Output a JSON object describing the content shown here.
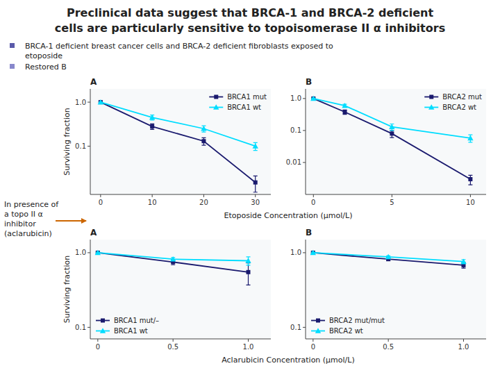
{
  "title": [
    "Preclinical data suggest that BRCA-1 and BRCA-2 deficient",
    "cells are particularly sensitive to topoisomerase II α inhibitors"
  ],
  "bullets": [
    [
      "BRCA-1 deficient breast cancer cells and BRCA-2 deficient fibroblasts exposed to",
      "etoposide"
    ],
    [
      "Restored B"
    ]
  ],
  "annotations": [
    "In presence of\na topo II α\ninhibitor\n(aclarubicin)"
  ],
  "chart_data": [
    {
      "type": "line",
      "title": "A",
      "x_label": "Etoposide Concentration (μmol/L)",
      "y_label": "Surviving fraction",
      "log": "y",
      "grid": false,
      "legend": "upper-right",
      "x": [
        0,
        10,
        20,
        30
      ],
      "xlim": [
        -2,
        33
      ],
      "ylim": [
        0.008,
        2.0
      ],
      "xticks": [
        0,
        10,
        20,
        30
      ],
      "yticks": [
        0.1,
        {
          "value": 1.0,
          "label": "1.0"
        }
      ],
      "series": [
        {
          "name": "BRCA1 mut",
          "color": "#1a1a6e",
          "marker": "square",
          "values": [
            1.0,
            0.28,
            0.13,
            0.015
          ],
          "errors": [
            0.0,
            0.04,
            0.025,
            0.006
          ]
        },
        {
          "name": "BRCA1 wt",
          "color": "#00ddff",
          "marker": "triangle",
          "values": [
            1.0,
            0.45,
            0.25,
            0.1
          ],
          "errors": [
            0.0,
            0.06,
            0.04,
            0.02
          ]
        }
      ]
    },
    {
      "type": "line",
      "title": "B",
      "log": "y",
      "grid": false,
      "legend": "upper-right",
      "x": [
        0,
        2,
        5,
        10
      ],
      "xlim": [
        -0.5,
        11
      ],
      "ylim": [
        0.001,
        2.0
      ],
      "xticks": [
        0,
        5,
        10
      ],
      "yticks": [
        0.01,
        0.1,
        {
          "value": 1.0,
          "label": "1.0"
        }
      ],
      "series": [
        {
          "name": "BRCA2 mut",
          "color": "#1a1a6e",
          "marker": "square",
          "values": [
            1.0,
            0.38,
            0.08,
            0.003
          ],
          "errors": [
            0.03,
            0.06,
            0.02,
            0.001
          ]
        },
        {
          "name": "BRCA2 wt",
          "color": "#00ddff",
          "marker": "triangle",
          "values": [
            1.0,
            0.6,
            0.13,
            0.058
          ],
          "errors": [
            0.03,
            0.06,
            0.03,
            0.015
          ]
        }
      ]
    },
    {
      "type": "line",
      "title": "A",
      "x_label": "Aclarubicin Concentration (μmol/L)",
      "y_label": "Surviving fraction",
      "log": "y",
      "grid": false,
      "legend": "lower-left",
      "x": [
        0,
        0.5,
        1.0
      ],
      "xlim": [
        -0.05,
        1.15
      ],
      "ylim": [
        0.07,
        1.5
      ],
      "xticks": [
        0,
        0.5,
        {
          "value": 1.0,
          "label": "1.0"
        }
      ],
      "yticks": [
        0.1,
        {
          "value": 1.0,
          "label": "1.0"
        }
      ],
      "series": [
        {
          "name": "BRCA1 mut/–",
          "color": "#1a1a6e",
          "marker": "square",
          "values": [
            1.0,
            0.75,
            0.55
          ],
          "errors": [
            0.02,
            0.06,
            0.18
          ]
        },
        {
          "name": "BRCA1 wt",
          "color": "#00ddff",
          "marker": "triangle",
          "values": [
            1.0,
            0.82,
            0.78
          ],
          "errors": [
            0.02,
            0.04,
            0.1
          ]
        }
      ]
    },
    {
      "type": "line",
      "title": "B",
      "log": "y",
      "grid": false,
      "legend": "lower-left",
      "x": [
        0,
        0.5,
        1.0
      ],
      "xlim": [
        -0.05,
        1.15
      ],
      "ylim": [
        0.07,
        1.5
      ],
      "xticks": [
        0,
        0.5,
        {
          "value": 1.0,
          "label": "1.0"
        }
      ],
      "yticks": [
        0.1,
        {
          "value": 1.0,
          "label": "1.0"
        }
      ],
      "series": [
        {
          "name": "BRCA2 mut/mut",
          "color": "#1a1a6e",
          "marker": "square",
          "values": [
            1.0,
            0.82,
            0.68
          ],
          "errors": [
            0.02,
            0.04,
            0.06
          ]
        },
        {
          "name": "BRCA2 wt",
          "color": "#00ddff",
          "marker": "triangle",
          "values": [
            1.0,
            0.88,
            0.76
          ],
          "errors": [
            0.02,
            0.03,
            0.05
          ]
        }
      ]
    }
  ]
}
